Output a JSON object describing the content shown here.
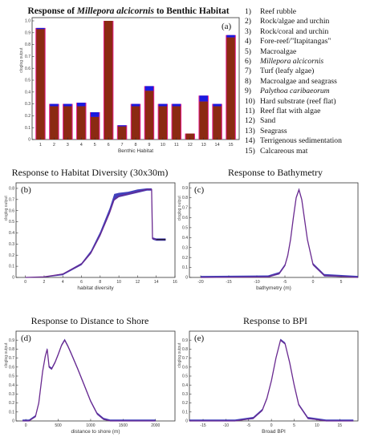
{
  "legend_items": [
    {
      "num": "1)",
      "label": "Reef rubble",
      "italic": false
    },
    {
      "num": "2)",
      "label": "Rock/algae and urchin",
      "italic": false
    },
    {
      "num": "3)",
      "label": "Rock/coral and urchin",
      "italic": false
    },
    {
      "num": "4)",
      "label": "Fore-reef/\"Itapitangas\"",
      "italic": false
    },
    {
      "num": "5)",
      "label": "Macroalgae",
      "italic": false
    },
    {
      "num": "6)",
      "label": "Millepora alcicornis",
      "italic": true
    },
    {
      "num": "7)",
      "label": "Turf (leafy algae)",
      "italic": false
    },
    {
      "num": "8)",
      "label": "Macroalgae and seagrass",
      "italic": false
    },
    {
      "num": "9)",
      "label": "Palythoa caribaeorum",
      "italic": true
    },
    {
      "num": "10)",
      "label": "Hard substrate (reef flat)",
      "italic": false
    },
    {
      "num": "11)",
      "label": "Reef flat with algae",
      "italic": false
    },
    {
      "num": "12)",
      "label": "Sand",
      "italic": false
    },
    {
      "num": "13)",
      "label": "Seagrass",
      "italic": false
    },
    {
      "num": "14)",
      "label": "Terrigenous sedimentation",
      "italic": false
    },
    {
      "num": "15)",
      "label": "Calcareous mat",
      "italic": false
    }
  ],
  "colors": {
    "bar": "#8b2a12",
    "bar_edge": "#e8208f",
    "bar_top": "#1a1ae0",
    "curve": "#6a2a90",
    "band": "#2020b0",
    "frame": "#333333"
  },
  "chart_data": [
    {
      "id": "a",
      "type": "bar",
      "title_prefix": "Response of ",
      "title_species": "Millepora alcicornis",
      "title_suffix": " to Benthic Habitat",
      "panel_letter": "(a)",
      "xlabel": "Benthic Habitat",
      "ylabel": "cloglog output",
      "categories": [
        "1",
        "2",
        "3",
        "4",
        "5",
        "6",
        "7",
        "8",
        "9",
        "10",
        "11",
        "12",
        "13",
        "14",
        "15"
      ],
      "values": [
        0.93,
        0.28,
        0.28,
        0.28,
        0.19,
        1.0,
        0.11,
        0.28,
        0.41,
        0.28,
        0.28,
        0.05,
        0.32,
        0.28,
        0.86
      ],
      "upper": [
        0.94,
        0.3,
        0.3,
        0.31,
        0.23,
        1.0,
        0.12,
        0.3,
        0.45,
        0.3,
        0.3,
        0.05,
        0.37,
        0.3,
        0.88
      ],
      "ylim": [
        0,
        1
      ],
      "yticks": [
        "0",
        "0.1",
        "0.2",
        "0.3",
        "0.4",
        "0.5",
        "0.6",
        "0.7",
        "0.8",
        "0.9",
        "1.0"
      ]
    },
    {
      "id": "b",
      "type": "line",
      "title": "Response to Habitat Diversity (30x30m)",
      "panel_letter": "(b)",
      "xlabel": "habitat diversity",
      "ylabel": "cloglog output",
      "x": [
        0,
        2,
        4,
        6,
        7,
        8,
        9,
        9.5,
        10,
        11,
        12,
        13,
        13.5,
        13.6,
        14,
        15
      ],
      "y": [
        0.0,
        0.005,
        0.03,
        0.12,
        0.22,
        0.38,
        0.58,
        0.7,
        0.73,
        0.75,
        0.77,
        0.79,
        0.79,
        0.35,
        0.34,
        0.34
      ],
      "y_upper": [
        0.0,
        0.006,
        0.035,
        0.13,
        0.24,
        0.41,
        0.62,
        0.75,
        0.76,
        0.77,
        0.79,
        0.8,
        0.8,
        0.36,
        0.35,
        0.35
      ],
      "xlim": [
        -1,
        16
      ],
      "ylim": [
        0,
        0.85
      ],
      "xticks": [
        "0",
        "2",
        "4",
        "6",
        "8",
        "10",
        "12",
        "14",
        "16"
      ],
      "yticks": [
        "0",
        "0.1",
        "0.2",
        "0.3",
        "0.4",
        "0.5",
        "0.6",
        "0.7",
        "0.8"
      ]
    },
    {
      "id": "c",
      "type": "line",
      "title": "Response to Bathymetry",
      "panel_letter": "(c)",
      "xlabel": "bathymetry (m)",
      "ylabel": "cloglog output",
      "x": [
        -20,
        -8,
        -6,
        -5,
        -4.5,
        -4,
        -3.5,
        -3,
        -2.5,
        -2,
        -1.5,
        -1,
        0,
        2,
        8
      ],
      "y": [
        0.0,
        0.005,
        0.04,
        0.12,
        0.22,
        0.38,
        0.6,
        0.8,
        0.88,
        0.78,
        0.58,
        0.38,
        0.13,
        0.02,
        0.0
      ],
      "xlim": [
        -22,
        8
      ],
      "ylim": [
        0,
        0.95
      ],
      "xticks": [
        "-20",
        "-15",
        "-10",
        "-5",
        "0",
        "5"
      ],
      "yticks": [
        "0",
        "0.1",
        "0.2",
        "0.3",
        "0.4",
        "0.5",
        "0.6",
        "0.7",
        "0.8",
        "0.9"
      ]
    },
    {
      "id": "d",
      "type": "line",
      "title": "Response to Distance to Shore",
      "panel_letter": "(d)",
      "xlabel": "distance to shore (m)",
      "ylabel": "cloglog output",
      "x": [
        -50,
        50,
        150,
        200,
        260,
        300,
        330,
        360,
        400,
        450,
        500,
        550,
        600,
        650,
        700,
        800,
        900,
        1000,
        1100,
        1200,
        1300,
        2000
      ],
      "y": [
        0.0,
        0.0,
        0.05,
        0.2,
        0.55,
        0.72,
        0.8,
        0.6,
        0.58,
        0.65,
        0.74,
        0.84,
        0.9,
        0.83,
        0.75,
        0.58,
        0.4,
        0.22,
        0.08,
        0.02,
        0.0,
        0.0
      ],
      "xlim": [
        -150,
        2300
      ],
      "ylim": [
        0,
        1.0
      ],
      "xticks": [
        "0",
        "500",
        "1000",
        "1500",
        "2000"
      ],
      "yticks": [
        "0",
        "0.1",
        "0.2",
        "0.3",
        "0.4",
        "0.5",
        "0.6",
        "0.7",
        "0.8",
        "0.9"
      ]
    },
    {
      "id": "e",
      "type": "line",
      "title": "Response to BPI",
      "panel_letter": "(e)",
      "xlabel": "Broad BPI",
      "ylabel": "cloglog output",
      "x": [
        -18,
        -8,
        -4,
        -2,
        -1,
        0,
        1,
        2,
        3,
        4,
        5,
        6,
        8,
        12,
        18
      ],
      "y": [
        0.0,
        0.0,
        0.03,
        0.12,
        0.25,
        0.45,
        0.7,
        0.9,
        0.86,
        0.65,
        0.4,
        0.18,
        0.03,
        0.0,
        0.0
      ],
      "xlim": [
        -18,
        19
      ],
      "ylim": [
        0,
        1.0
      ],
      "xticks": [
        "-15",
        "-10",
        "-5",
        "0",
        "5",
        "10",
        "15"
      ],
      "yticks": [
        "0",
        "0.1",
        "0.2",
        "0.3",
        "0.4",
        "0.5",
        "0.6",
        "0.7",
        "0.8",
        "0.9"
      ]
    }
  ]
}
